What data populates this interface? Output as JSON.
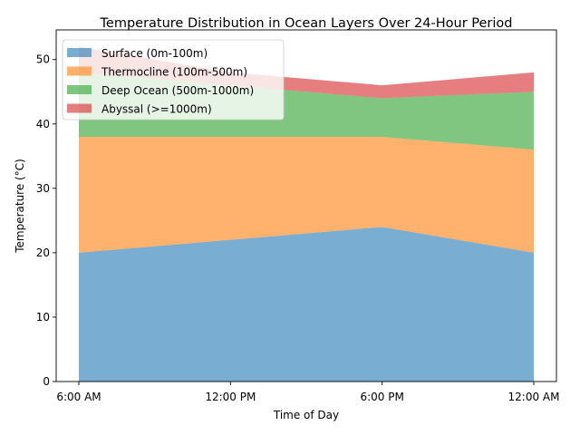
{
  "chart_data": {
    "type": "area",
    "stacked": true,
    "title": "Temperature Distribution in Ocean Layers Over 24-Hour Period",
    "xlabel": "Time of Day",
    "ylabel": "Temperature (°C)",
    "categories": [
      "6:00 AM",
      "12:00 PM",
      "6:00 PM",
      "12:00 AM"
    ],
    "ylim": [
      0,
      54.6
    ],
    "yticks": [
      "0",
      "10",
      "20",
      "30",
      "40",
      "50"
    ],
    "grid": false,
    "legend_position": "upper-left",
    "series": [
      {
        "name": "Surface (0m-100m)",
        "values": [
          20,
          22,
          24,
          20
        ],
        "color": "#1f77b4"
      },
      {
        "name": "Thermocline (100m-500m)",
        "values": [
          18,
          16,
          14,
          16
        ],
        "color": "#ff7f0e"
      },
      {
        "name": "Deep Ocean (500m-1000m)",
        "values": [
          10,
          8,
          6,
          9
        ],
        "color": "#2ca02c"
      },
      {
        "name": "Abyssal (>=1000m)",
        "values": [
          4,
          2,
          2,
          3
        ],
        "color": "#d62728"
      }
    ]
  }
}
